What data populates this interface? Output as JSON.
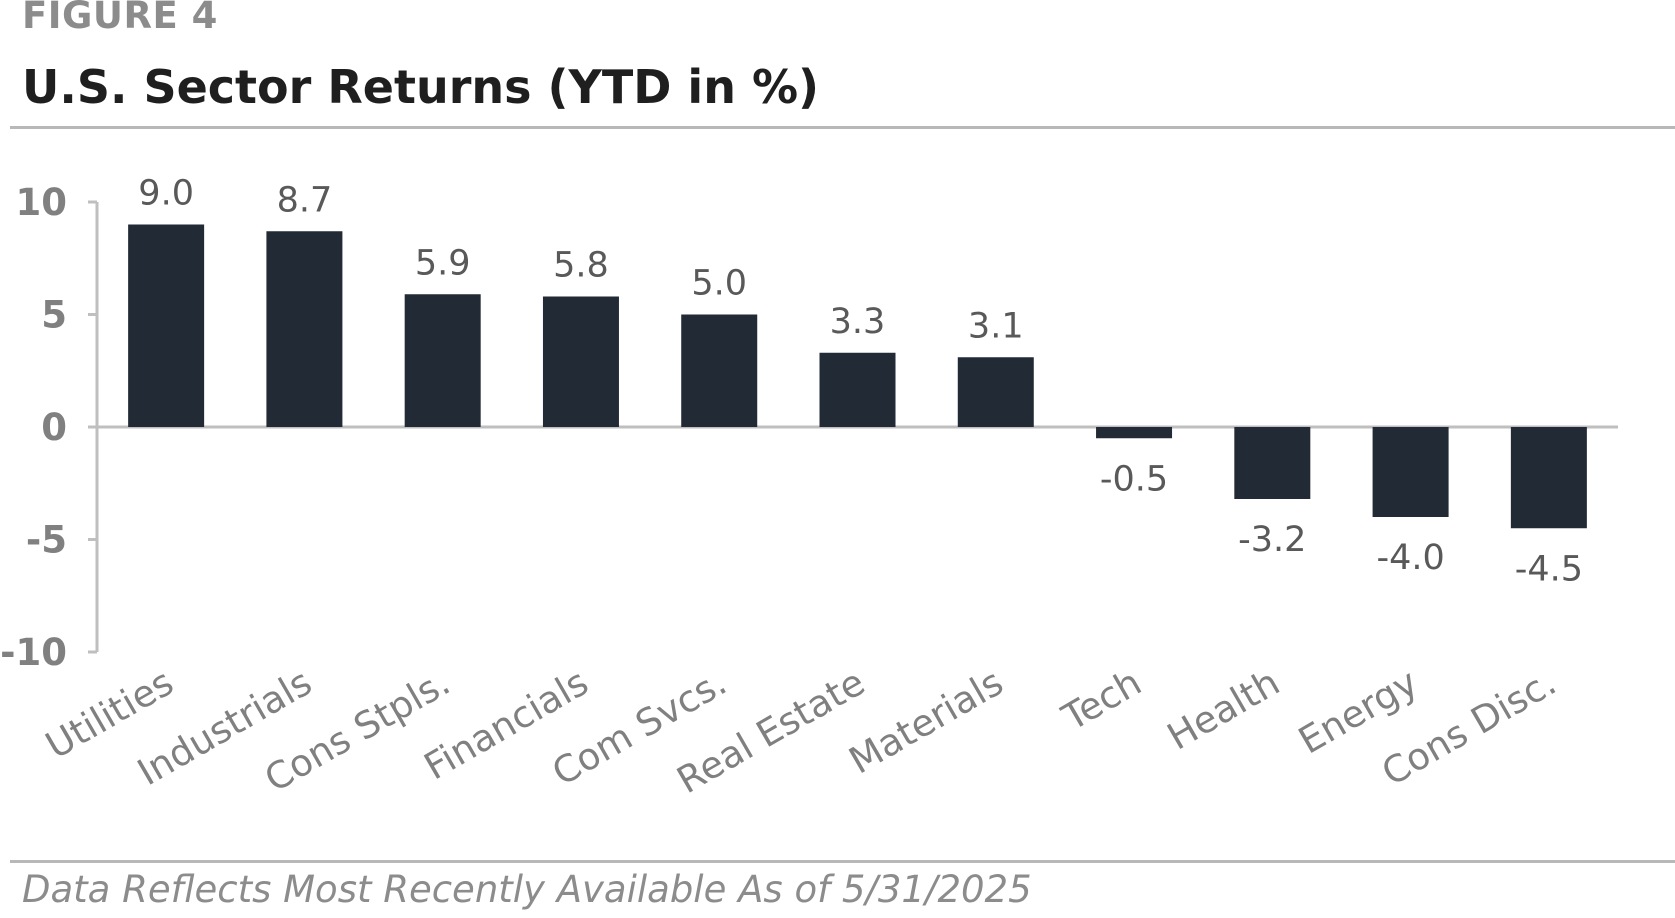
{
  "figure_label": "FIGURE 4",
  "title": "U.S. Sector Returns (YTD in %)",
  "footnote": "Data Reflects Most Recently Available As of 5/31/2025",
  "colors": {
    "bar": "#222a35",
    "axis": "#bfbfbf",
    "label": "#595959",
    "tick": "#808080"
  },
  "chart_data": {
    "type": "bar",
    "title": "U.S. Sector Returns (YTD in %)",
    "xlabel": "",
    "ylabel": "",
    "ylim": [
      -10,
      10
    ],
    "yticks": [
      10,
      5,
      0,
      -5,
      -10
    ],
    "ytick_labels": [
      "10",
      "5",
      "0",
      "-5",
      "-10"
    ],
    "grid": false,
    "categories": [
      "Utilities",
      "Industrials",
      "Cons Stpls.",
      "Financials",
      "Com Svcs.",
      "Real Estate",
      "Materials",
      "Tech",
      "Health",
      "Energy",
      "Cons Disc."
    ],
    "values": [
      9.0,
      8.7,
      5.9,
      5.8,
      5.0,
      3.3,
      3.1,
      -0.5,
      -3.2,
      -4.0,
      -4.5
    ],
    "data_labels": [
      "9.0",
      "8.7",
      "5.9",
      "5.8",
      "5.0",
      "3.3",
      "3.1",
      "-0.5",
      "-3.2",
      "-4.0",
      "-4.5"
    ]
  }
}
